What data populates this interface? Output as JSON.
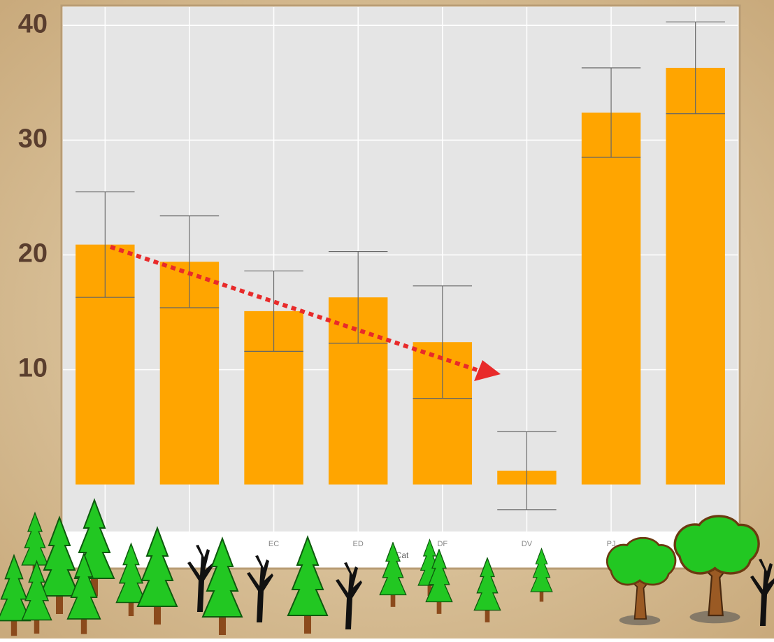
{
  "chart_data": {
    "type": "bar",
    "x_label": "Cat",
    "categories": [
      null,
      null,
      "EC",
      "ED",
      "DF",
      "DV",
      "PJ",
      null
    ],
    "values": [
      20.9,
      19.4,
      15.1,
      16.3,
      12.4,
      1.2,
      32.4,
      36.3
    ],
    "errors": [
      4.6,
      4.0,
      3.5,
      4.0,
      4.9,
      3.4,
      3.9,
      4.0
    ],
    "color": "#ffa500",
    "ylim": [
      -4.1,
      41.6
    ],
    "yticks": [
      10,
      20,
      30,
      40
    ],
    "grid": true
  }
}
